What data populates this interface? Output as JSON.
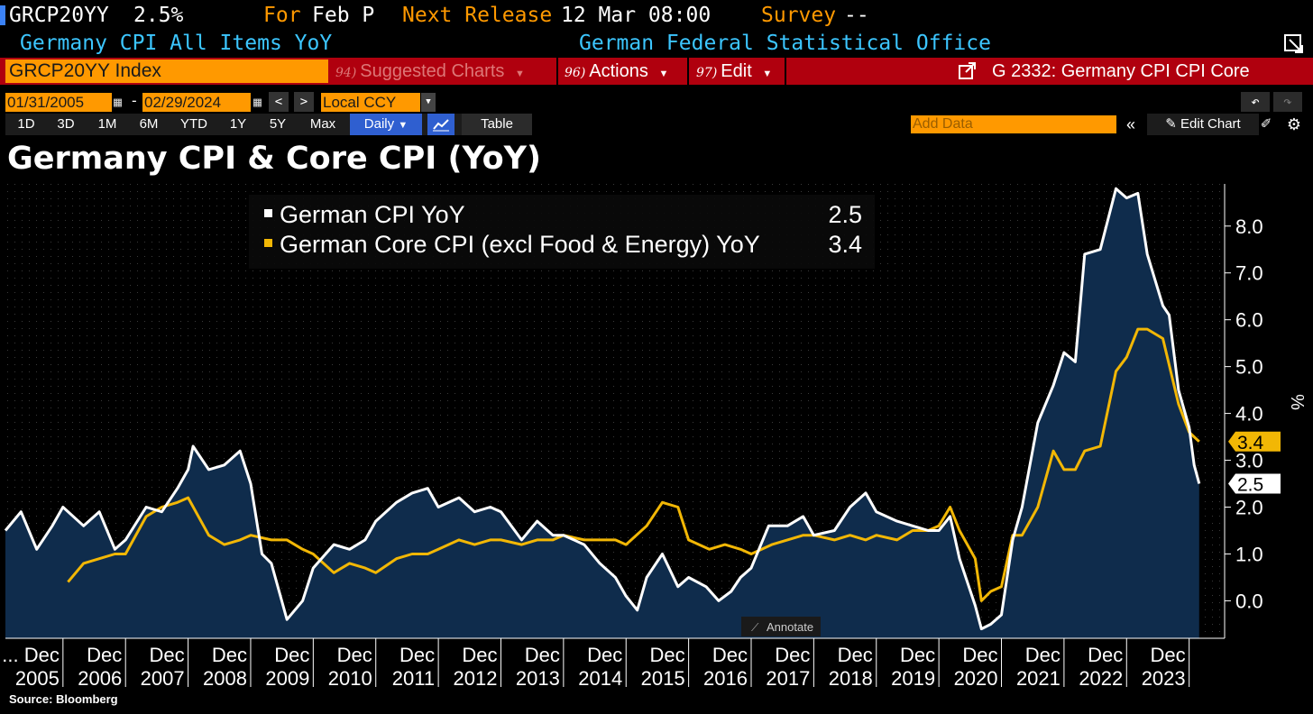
{
  "header": {
    "ticker": "GRCP20YY",
    "value": "2.5%",
    "for_label": "For",
    "for_value": "Feb P",
    "next_release_label": "Next Release",
    "next_release_value": "12 Mar 08:00",
    "survey_label": "Survey",
    "survey_value": "--",
    "description": "Germany CPI All Items YoY",
    "source_org": "German Federal Statistical Office"
  },
  "toolbar": {
    "security": "GRCP20YY Index",
    "suggested_num": "94)",
    "suggested_label": "Suggested Charts",
    "actions_num": "96)",
    "actions_label": "Actions",
    "edit_num": "97)",
    "edit_label": "Edit",
    "chart_id": "G 2332: Germany CPI CPI Core"
  },
  "range": {
    "start_date": "01/31/2005",
    "end_date": "02/29/2024",
    "separator": "-",
    "currency": "Local CCY"
  },
  "periods": [
    "1D",
    "3D",
    "1M",
    "6M",
    "YTD",
    "1Y",
    "5Y",
    "Max"
  ],
  "frequency": "Daily",
  "table_label": "Table",
  "add_data_placeholder": "Add Data",
  "edit_chart_label": "Edit Chart",
  "source_text": "Source: Bloomberg",
  "annotate_label": "Annotate",
  "colors": {
    "cpi": "#ffffff",
    "core": "#f2b705",
    "area": "#0f2c4c",
    "accent": "#ff9900"
  },
  "chart_data": {
    "type": "line",
    "title": "Germany CPI & Core CPI (YoY)",
    "ylabel": "%",
    "ylim": [
      -0.8,
      8.9
    ],
    "yticks": [
      0,
      1,
      2,
      3,
      4,
      5,
      6,
      7,
      8
    ],
    "ytick_labels": [
      "0.0",
      "1.0",
      "2.0",
      "3.0",
      "4.0",
      "5.0",
      "6.0",
      "7.0",
      "8.0"
    ],
    "xlim": [
      2005.0,
      2024.17
    ],
    "xticks": [
      2005.92,
      2006.92,
      2007.92,
      2008.92,
      2009.92,
      2010.92,
      2011.92,
      2012.92,
      2013.92,
      2014.92,
      2015.92,
      2016.92,
      2017.92,
      2018.92,
      2019.92,
      2020.92,
      2021.92,
      2022.92,
      2023.92
    ],
    "xtick_labels_top": [
      "... Dec",
      "Dec",
      "Dec",
      "Dec",
      "Dec",
      "Dec",
      "Dec",
      "Dec",
      "Dec",
      "Dec",
      "Dec",
      "Dec",
      "Dec",
      "Dec",
      "Dec",
      "Dec",
      "Dec",
      "Dec",
      "Dec"
    ],
    "xtick_labels_bottom": [
      "2005",
      "2006",
      "2007",
      "2008",
      "2009",
      "2010",
      "2011",
      "2012",
      "2013",
      "2014",
      "2015",
      "2016",
      "2017",
      "2018",
      "2019",
      "2020",
      "2021",
      "2022",
      "2023"
    ],
    "series": [
      {
        "name": "German CPI YoY",
        "last_value": "2.5",
        "area": true,
        "points": [
          [
            2005.0,
            1.5
          ],
          [
            2005.25,
            1.9
          ],
          [
            2005.5,
            1.1
          ],
          [
            2005.75,
            1.6
          ],
          [
            2005.92,
            2.0
          ],
          [
            2006.25,
            1.6
          ],
          [
            2006.5,
            1.9
          ],
          [
            2006.75,
            1.1
          ],
          [
            2006.92,
            1.3
          ],
          [
            2007.25,
            2.0
          ],
          [
            2007.5,
            1.9
          ],
          [
            2007.75,
            2.4
          ],
          [
            2007.92,
            2.8
          ],
          [
            2008.0,
            3.3
          ],
          [
            2008.25,
            2.8
          ],
          [
            2008.5,
            2.9
          ],
          [
            2008.75,
            3.2
          ],
          [
            2008.92,
            2.5
          ],
          [
            2009.1,
            1.0
          ],
          [
            2009.25,
            0.8
          ],
          [
            2009.5,
            -0.4
          ],
          [
            2009.75,
            0.0
          ],
          [
            2009.92,
            0.7
          ],
          [
            2010.25,
            1.2
          ],
          [
            2010.5,
            1.1
          ],
          [
            2010.75,
            1.3
          ],
          [
            2010.92,
            1.7
          ],
          [
            2011.25,
            2.1
          ],
          [
            2011.5,
            2.3
          ],
          [
            2011.75,
            2.4
          ],
          [
            2011.92,
            2.0
          ],
          [
            2012.25,
            2.2
          ],
          [
            2012.5,
            1.9
          ],
          [
            2012.75,
            2.0
          ],
          [
            2012.92,
            1.9
          ],
          [
            2013.25,
            1.3
          ],
          [
            2013.5,
            1.7
          ],
          [
            2013.75,
            1.4
          ],
          [
            2013.92,
            1.4
          ],
          [
            2014.25,
            1.2
          ],
          [
            2014.5,
            0.8
          ],
          [
            2014.75,
            0.5
          ],
          [
            2014.92,
            0.1
          ],
          [
            2015.1,
            -0.2
          ],
          [
            2015.25,
            0.5
          ],
          [
            2015.5,
            1.0
          ],
          [
            2015.75,
            0.3
          ],
          [
            2015.92,
            0.5
          ],
          [
            2016.2,
            0.3
          ],
          [
            2016.4,
            0.0
          ],
          [
            2016.6,
            0.2
          ],
          [
            2016.75,
            0.5
          ],
          [
            2016.92,
            0.7
          ],
          [
            2017.2,
            1.6
          ],
          [
            2017.5,
            1.6
          ],
          [
            2017.75,
            1.8
          ],
          [
            2017.92,
            1.4
          ],
          [
            2018.25,
            1.5
          ],
          [
            2018.5,
            2.0
          ],
          [
            2018.75,
            2.3
          ],
          [
            2018.92,
            1.9
          ],
          [
            2019.25,
            1.7
          ],
          [
            2019.5,
            1.6
          ],
          [
            2019.75,
            1.5
          ],
          [
            2019.92,
            1.5
          ],
          [
            2020.1,
            1.8
          ],
          [
            2020.25,
            0.9
          ],
          [
            2020.5,
            -0.1
          ],
          [
            2020.6,
            -0.6
          ],
          [
            2020.75,
            -0.5
          ],
          [
            2020.92,
            -0.3
          ],
          [
            2021.1,
            1.3
          ],
          [
            2021.25,
            2.0
          ],
          [
            2021.5,
            3.8
          ],
          [
            2021.75,
            4.6
          ],
          [
            2021.92,
            5.3
          ],
          [
            2022.1,
            5.1
          ],
          [
            2022.25,
            7.4
          ],
          [
            2022.5,
            7.5
          ],
          [
            2022.75,
            8.8
          ],
          [
            2022.92,
            8.6
          ],
          [
            2023.1,
            8.7
          ],
          [
            2023.25,
            7.4
          ],
          [
            2023.5,
            6.3
          ],
          [
            2023.6,
            6.1
          ],
          [
            2023.75,
            4.5
          ],
          [
            2023.92,
            3.7
          ],
          [
            2024.0,
            2.9
          ],
          [
            2024.08,
            2.5
          ]
        ]
      },
      {
        "name": "German Core CPI (excl Food & Energy) YoY",
        "last_value": "3.4",
        "area": false,
        "points": [
          [
            2006.0,
            0.4
          ],
          [
            2006.25,
            0.8
          ],
          [
            2006.5,
            0.9
          ],
          [
            2006.75,
            1.0
          ],
          [
            2006.92,
            1.0
          ],
          [
            2007.25,
            1.8
          ],
          [
            2007.5,
            2.0
          ],
          [
            2007.75,
            2.1
          ],
          [
            2007.92,
            2.2
          ],
          [
            2008.25,
            1.4
          ],
          [
            2008.5,
            1.2
          ],
          [
            2008.75,
            1.3
          ],
          [
            2008.92,
            1.4
          ],
          [
            2009.25,
            1.3
          ],
          [
            2009.5,
            1.3
          ],
          [
            2009.75,
            1.1
          ],
          [
            2009.92,
            1.0
          ],
          [
            2010.25,
            0.6
          ],
          [
            2010.5,
            0.8
          ],
          [
            2010.75,
            0.7
          ],
          [
            2010.92,
            0.6
          ],
          [
            2011.25,
            0.9
          ],
          [
            2011.5,
            1.0
          ],
          [
            2011.75,
            1.0
          ],
          [
            2011.92,
            1.1
          ],
          [
            2012.25,
            1.3
          ],
          [
            2012.5,
            1.2
          ],
          [
            2012.75,
            1.3
          ],
          [
            2012.92,
            1.3
          ],
          [
            2013.25,
            1.2
          ],
          [
            2013.5,
            1.3
          ],
          [
            2013.75,
            1.3
          ],
          [
            2013.92,
            1.4
          ],
          [
            2014.25,
            1.3
          ],
          [
            2014.5,
            1.3
          ],
          [
            2014.75,
            1.3
          ],
          [
            2014.92,
            1.2
          ],
          [
            2015.25,
            1.6
          ],
          [
            2015.5,
            2.1
          ],
          [
            2015.75,
            2.0
          ],
          [
            2015.92,
            1.3
          ],
          [
            2016.25,
            1.1
          ],
          [
            2016.5,
            1.2
          ],
          [
            2016.75,
            1.1
          ],
          [
            2016.92,
            1.0
          ],
          [
            2017.25,
            1.2
          ],
          [
            2017.5,
            1.3
          ],
          [
            2017.75,
            1.4
          ],
          [
            2017.92,
            1.4
          ],
          [
            2018.25,
            1.3
          ],
          [
            2018.5,
            1.4
          ],
          [
            2018.75,
            1.3
          ],
          [
            2018.92,
            1.4
          ],
          [
            2019.25,
            1.3
          ],
          [
            2019.5,
            1.5
          ],
          [
            2019.75,
            1.5
          ],
          [
            2019.92,
            1.6
          ],
          [
            2020.1,
            2.0
          ],
          [
            2020.25,
            1.5
          ],
          [
            2020.5,
            0.9
          ],
          [
            2020.6,
            0.0
          ],
          [
            2020.75,
            0.2
          ],
          [
            2020.92,
            0.3
          ],
          [
            2021.1,
            1.4
          ],
          [
            2021.25,
            1.4
          ],
          [
            2021.5,
            2.0
          ],
          [
            2021.75,
            3.2
          ],
          [
            2021.92,
            2.8
          ],
          [
            2022.1,
            2.8
          ],
          [
            2022.25,
            3.2
          ],
          [
            2022.5,
            3.3
          ],
          [
            2022.75,
            4.9
          ],
          [
            2022.92,
            5.2
          ],
          [
            2023.1,
            5.8
          ],
          [
            2023.25,
            5.8
          ],
          [
            2023.5,
            5.6
          ],
          [
            2023.75,
            4.2
          ],
          [
            2023.92,
            3.6
          ],
          [
            2024.0,
            3.5
          ],
          [
            2024.08,
            3.4
          ]
        ]
      }
    ]
  }
}
